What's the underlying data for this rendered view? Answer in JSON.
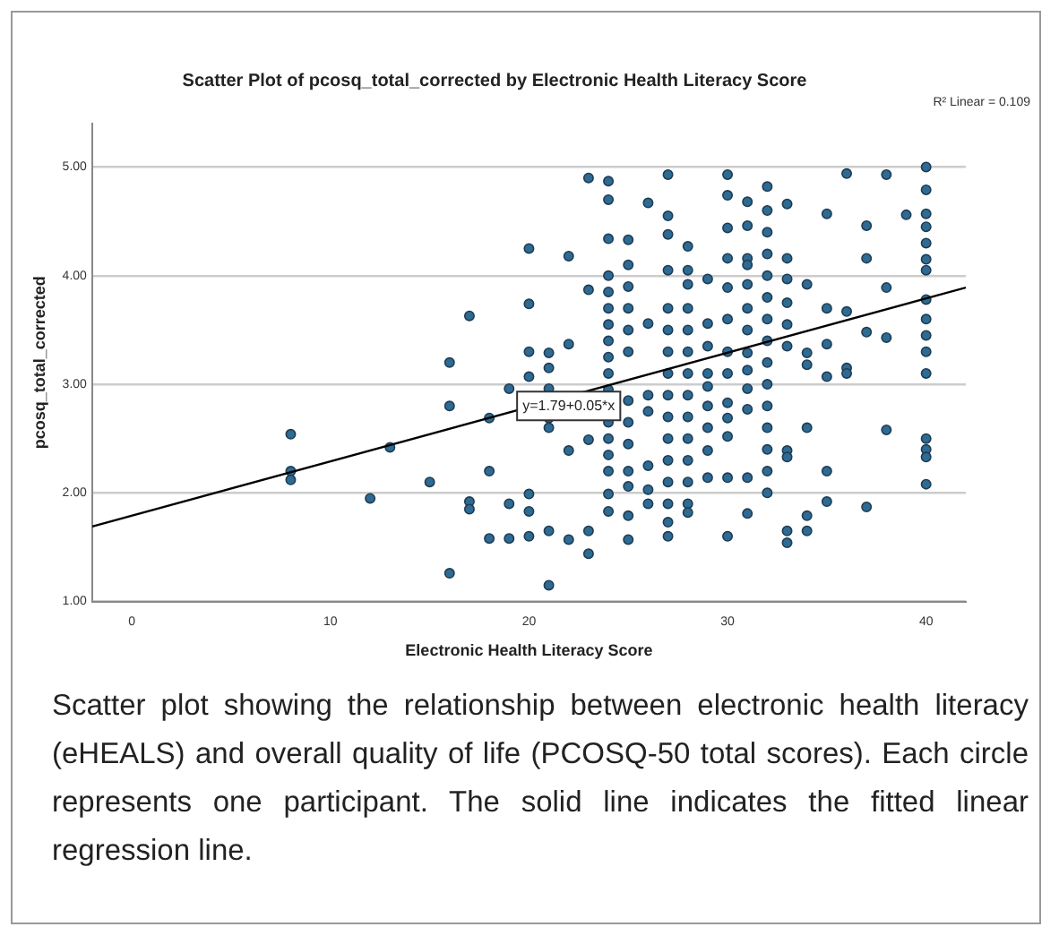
{
  "chart_data": {
    "type": "scatter",
    "title": "Scatter Plot of pcosq_total_corrected by Electronic Health Literacy Score",
    "xlabel": "Electronic Health Literacy Score",
    "ylabel": "pcosq_total_corrected",
    "xlim": [
      -2,
      42
    ],
    "xticks": [
      0,
      10,
      20,
      30,
      40
    ],
    "ylim": [
      1,
      5.4
    ],
    "yticks": [
      {
        "value": 1,
        "label": "1.00"
      },
      {
        "value": 2,
        "label": "2.00"
      },
      {
        "value": 3,
        "label": "3.00"
      },
      {
        "value": 4,
        "label": "4.00"
      },
      {
        "value": 5,
        "label": "5.00"
      }
    ],
    "grid": "y",
    "legend": false,
    "marker": "circle",
    "series": [
      {
        "color": "#2f6a92",
        "x": [
          8,
          8,
          8,
          12,
          13,
          15,
          16,
          16,
          16,
          17,
          17,
          17,
          18,
          18,
          18,
          19,
          19,
          19,
          20,
          20,
          20,
          20,
          20,
          20,
          20,
          21,
          21,
          21,
          21,
          21,
          21,
          21,
          22,
          22,
          22,
          22,
          23,
          23,
          23,
          23,
          23,
          24,
          24,
          24,
          24,
          24,
          24,
          24,
          24,
          24,
          24,
          24,
          24,
          24,
          24,
          24,
          24,
          24,
          25,
          25,
          25,
          25,
          25,
          25,
          25,
          25,
          25,
          25,
          25,
          25,
          25,
          26,
          26,
          26,
          26,
          26,
          26,
          26,
          27,
          27,
          27,
          27,
          27,
          27,
          27,
          27,
          27,
          27,
          27,
          27,
          27,
          27,
          27,
          27,
          28,
          28,
          28,
          28,
          28,
          28,
          28,
          28,
          28,
          28,
          28,
          28,
          28,
          28,
          29,
          29,
          29,
          29,
          29,
          29,
          29,
          29,
          29,
          30,
          30,
          30,
          30,
          30,
          30,
          30,
          30,
          30,
          30,
          30,
          30,
          30,
          31,
          31,
          31,
          31,
          31,
          31,
          31,
          31,
          31,
          31,
          31,
          31,
          31,
          32,
          32,
          32,
          32,
          32,
          32,
          32,
          32,
          32,
          32,
          32,
          32,
          32,
          32,
          32,
          33,
          33,
          33,
          33,
          33,
          33,
          33,
          33,
          33,
          33,
          34,
          34,
          34,
          34,
          34,
          34,
          35,
          35,
          35,
          35,
          35,
          35,
          36,
          36,
          36,
          36,
          37,
          37,
          37,
          37,
          38,
          38,
          38,
          38,
          39,
          40,
          40,
          40,
          40,
          40,
          40,
          40,
          40,
          40,
          40,
          40,
          40,
          40,
          40,
          40,
          40
        ],
        "values": [
          2.54,
          2.2,
          2.12,
          1.95,
          2.42,
          2.1,
          3.2,
          2.8,
          1.26,
          3.63,
          1.92,
          1.85,
          2.2,
          1.58,
          2.69,
          2.96,
          1.9,
          1.58,
          4.25,
          3.74,
          3.3,
          3.07,
          1.99,
          1.83,
          1.6,
          3.29,
          3.15,
          2.96,
          2.69,
          2.6,
          1.65,
          1.15,
          4.18,
          3.37,
          2.39,
          1.57,
          4.9,
          3.87,
          2.49,
          1.65,
          1.44,
          4.87,
          4.7,
          4.34,
          4.0,
          3.85,
          3.7,
          3.55,
          3.4,
          3.25,
          3.1,
          2.95,
          2.65,
          2.5,
          2.35,
          2.2,
          1.99,
          1.83,
          4.33,
          4.1,
          3.9,
          3.7,
          3.5,
          3.3,
          2.85,
          2.65,
          2.45,
          2.2,
          2.06,
          1.79,
          1.57,
          4.67,
          3.56,
          2.9,
          2.75,
          2.25,
          2.03,
          1.9,
          4.93,
          4.55,
          4.38,
          4.05,
          3.7,
          3.5,
          3.3,
          3.1,
          2.9,
          2.7,
          2.5,
          2.3,
          2.1,
          1.9,
          1.73,
          1.6,
          4.27,
          4.05,
          3.92,
          3.7,
          3.5,
          3.3,
          3.1,
          2.9,
          2.7,
          2.5,
          2.3,
          2.1,
          1.9,
          1.82,
          3.97,
          3.56,
          3.35,
          3.1,
          2.98,
          2.8,
          2.6,
          2.39,
          2.14,
          4.93,
          4.74,
          4.44,
          4.16,
          3.89,
          3.6,
          3.3,
          3.1,
          2.83,
          2.69,
          2.52,
          2.14,
          1.6,
          4.68,
          4.46,
          4.16,
          4.1,
          3.92,
          3.7,
          3.5,
          3.29,
          3.13,
          2.96,
          2.77,
          2.14,
          1.81,
          4.82,
          4.6,
          4.4,
          4.2,
          4.0,
          3.8,
          3.6,
          3.4,
          3.2,
          3.0,
          2.8,
          2.6,
          2.4,
          2.2,
          2.0,
          4.66,
          4.16,
          3.97,
          3.75,
          3.55,
          3.35,
          2.39,
          2.33,
          1.65,
          1.54,
          3.92,
          3.29,
          3.18,
          2.6,
          1.79,
          1.65,
          4.57,
          3.7,
          3.37,
          3.07,
          2.2,
          1.92,
          4.94,
          3.67,
          3.15,
          3.1,
          4.46,
          4.16,
          3.48,
          1.87,
          4.93,
          3.89,
          3.43,
          2.58,
          4.56,
          5.0,
          4.79,
          4.57,
          4.45,
          4.3,
          4.15,
          4.05,
          3.78,
          3.6,
          3.45,
          3.3,
          3.1,
          2.5,
          2.4,
          2.33,
          2.08
        ]
      },
      {
        "type": "line",
        "color": "#000000",
        "marker": "none",
        "x": [
          -2,
          42
        ],
        "values": [
          1.69,
          3.89
        ]
      }
    ],
    "annotations": [
      {
        "text": "y=1.79+0.05*x",
        "x": 22,
        "y": 2.8
      },
      "R² Linear = 0.109",
      "Scatter plot showing the relationship between electronic health literacy (eHEALS) and overall quality of life (PCOSQ-50 total scores). Each circle represents one participant. The solid line indicates the fitted linear regression line."
    ]
  }
}
